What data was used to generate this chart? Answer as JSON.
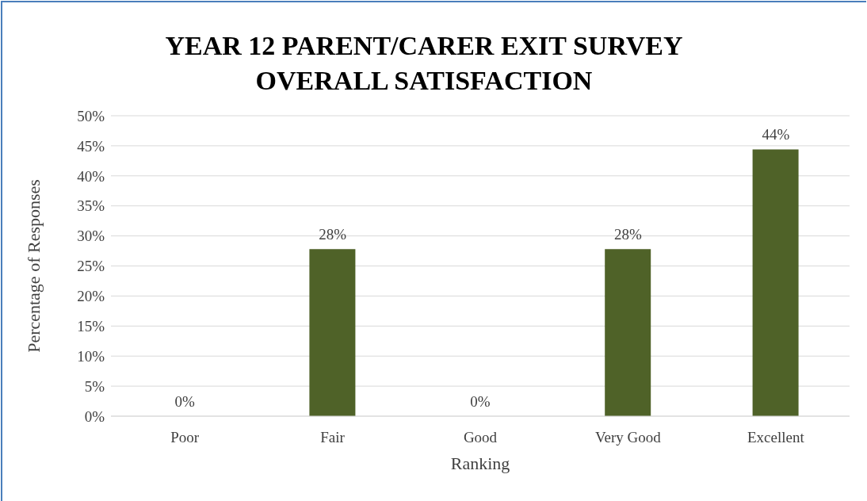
{
  "chart_data": {
    "type": "bar",
    "title": "YEAR 12 PARENT/CARER EXIT SURVEY\nOVERALL SATISFACTION",
    "xlabel": "Ranking",
    "ylabel": "Percentage of Responses",
    "categories": [
      "Poor",
      "Fair",
      "Good",
      "Very Good",
      "Excellent"
    ],
    "values": [
      0,
      27.8,
      0,
      27.8,
      44.4
    ],
    "color": "#4f6228",
    "value_labels": [
      "0%",
      "28%",
      "0%",
      "28%",
      "44%"
    ],
    "ylim": [
      0,
      50
    ],
    "yticks": [
      {
        "value": 0,
        "label": "0%"
      },
      {
        "value": 5,
        "label": "5%"
      },
      {
        "value": 10,
        "label": "10%"
      },
      {
        "value": 15,
        "label": "15%"
      },
      {
        "value": 20,
        "label": "20%"
      },
      {
        "value": 25,
        "label": "25%"
      },
      {
        "value": 30,
        "label": "30%"
      },
      {
        "value": 35,
        "label": "35%"
      },
      {
        "value": 40,
        "label": "40%"
      },
      {
        "value": 45,
        "label": "45%"
      },
      {
        "value": 50,
        "label": "50%"
      }
    ],
    "grid": "y"
  }
}
